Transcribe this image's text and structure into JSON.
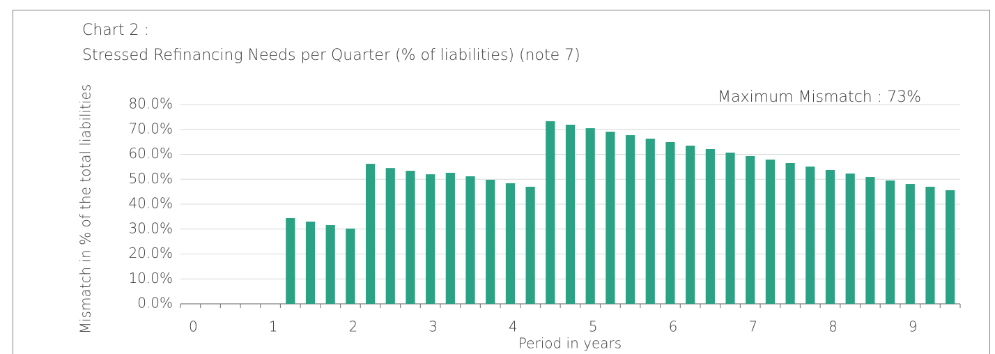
{
  "chart_data": {
    "type": "bar",
    "subtitle": "Chart 2 :",
    "title": "Stressed Refinancing Needs per Quarter  (% of liabilities) (note 7)",
    "annotation": "Maximum Mismatch : 73%",
    "y_label": "Mismatch in % of the total liabilities",
    "x_label": "Period in years",
    "categories": [
      "0",
      null,
      null,
      null,
      "1",
      null,
      null,
      null,
      "2",
      null,
      null,
      null,
      "3",
      null,
      null,
      null,
      "4",
      null,
      null,
      null,
      "5",
      null,
      null,
      null,
      "6",
      null,
      null,
      null,
      "7",
      null,
      null,
      null,
      "8",
      null,
      null,
      null,
      "9",
      null,
      null
    ],
    "values": [
      0,
      0,
      0,
      0,
      0,
      34.4,
      33.0,
      31.6,
      30.2,
      56.2,
      54.5,
      53.4,
      52.0,
      52.6,
      51.2,
      49.8,
      48.4,
      47.0,
      73.3,
      71.9,
      70.5,
      69.1,
      67.7,
      66.3,
      64.9,
      63.5,
      62.1,
      60.7,
      59.3,
      57.9,
      56.5,
      55.1,
      53.7,
      52.3,
      50.9,
      49.5,
      48.1,
      47.0,
      45.6
    ],
    "color": "#2ba283",
    "ylim": [
      0,
      80
    ],
    "yticks": [
      {
        "value": 0,
        "label": "0.0%"
      },
      {
        "value": 10,
        "label": "10.0%"
      },
      {
        "value": 20,
        "label": "20.0%"
      },
      {
        "value": 30,
        "label": "30.0%"
      },
      {
        "value": 40,
        "label": "40.0%"
      },
      {
        "value": 50,
        "label": "50.0%"
      },
      {
        "value": 60,
        "label": "60.0%"
      },
      {
        "value": 70,
        "label": "70.0%"
      },
      {
        "value": 80,
        "label": "80.0%"
      }
    ],
    "grid": true
  }
}
